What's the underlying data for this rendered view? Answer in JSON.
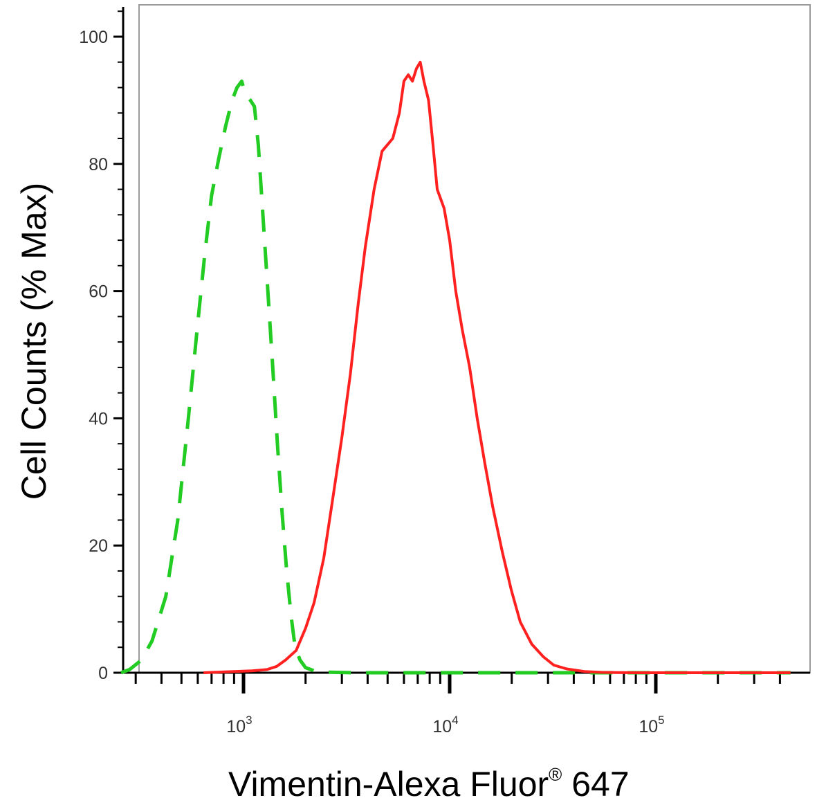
{
  "chart_data": {
    "type": "line",
    "xlabel": "Vimentin-Alexa Fluor",
    "xlabel_superscript": "®",
    "xlabel_suffix": " 647",
    "ylabel": "Cell Counts (% Max)",
    "x_scale": "log",
    "xlim": [
      250,
      450000
    ],
    "ylim": [
      0,
      105
    ],
    "y_ticks": [
      "0",
      "20",
      "40",
      "60",
      "80",
      "100"
    ],
    "x_ticks": [
      {
        "base": "10",
        "exp": "3"
      },
      {
        "base": "10",
        "exp": "4"
      },
      {
        "base": "10",
        "exp": "5"
      }
    ],
    "grid": false,
    "series": [
      {
        "style": "dashed",
        "color": "#22cc22",
        "points": [
          [
            255,
            0
          ],
          [
            280,
            0.5
          ],
          [
            320,
            2
          ],
          [
            360,
            5
          ],
          [
            420,
            12
          ],
          [
            480,
            24
          ],
          [
            540,
            40
          ],
          [
            600,
            55
          ],
          [
            650,
            66
          ],
          [
            700,
            75
          ],
          [
            760,
            81
          ],
          [
            820,
            86
          ],
          [
            880,
            90
          ],
          [
            930,
            92
          ],
          [
            980,
            93
          ],
          [
            1020,
            91
          ],
          [
            1080,
            90
          ],
          [
            1130,
            89
          ],
          [
            1180,
            83
          ],
          [
            1230,
            74
          ],
          [
            1300,
            62
          ],
          [
            1380,
            49
          ],
          [
            1460,
            36
          ],
          [
            1540,
            25
          ],
          [
            1620,
            16
          ],
          [
            1700,
            9
          ],
          [
            1780,
            4
          ],
          [
            1880,
            2
          ],
          [
            2000,
            0.8
          ],
          [
            2200,
            0.3
          ],
          [
            2500,
            0.1
          ],
          [
            3500,
            0
          ],
          [
            10000,
            0
          ],
          [
            50000,
            0
          ],
          [
            450000,
            0
          ]
        ]
      },
      {
        "style": "solid",
        "color": "#ff2020",
        "points": [
          [
            640,
            0
          ],
          [
            900,
            0.2
          ],
          [
            1100,
            0.3
          ],
          [
            1300,
            0.5
          ],
          [
            1450,
            1
          ],
          [
            1600,
            2
          ],
          [
            1800,
            3.5
          ],
          [
            2000,
            7
          ],
          [
            2200,
            11
          ],
          [
            2450,
            18
          ],
          [
            2700,
            27
          ],
          [
            3000,
            37
          ],
          [
            3300,
            47
          ],
          [
            3600,
            58
          ],
          [
            3900,
            67
          ],
          [
            4300,
            76
          ],
          [
            4700,
            82
          ],
          [
            5300,
            84
          ],
          [
            5700,
            88
          ],
          [
            6000,
            93
          ],
          [
            6300,
            94
          ],
          [
            6600,
            93
          ],
          [
            6900,
            95
          ],
          [
            7200,
            96
          ],
          [
            7500,
            93
          ],
          [
            7900,
            90
          ],
          [
            8300,
            83
          ],
          [
            8700,
            76
          ],
          [
            9400,
            73
          ],
          [
            10000,
            68
          ],
          [
            10700,
            60
          ],
          [
            11500,
            54
          ],
          [
            12500,
            48
          ],
          [
            13600,
            40
          ],
          [
            14800,
            33
          ],
          [
            16200,
            26
          ],
          [
            18000,
            19
          ],
          [
            19900,
            13
          ],
          [
            22000,
            8
          ],
          [
            25000,
            4.5
          ],
          [
            28500,
            2.5
          ],
          [
            32000,
            1.2
          ],
          [
            37000,
            0.6
          ],
          [
            45000,
            0.2
          ],
          [
            55000,
            0.05
          ],
          [
            80000,
            0
          ],
          [
            200000,
            0
          ],
          [
            450000,
            0
          ]
        ]
      }
    ]
  }
}
